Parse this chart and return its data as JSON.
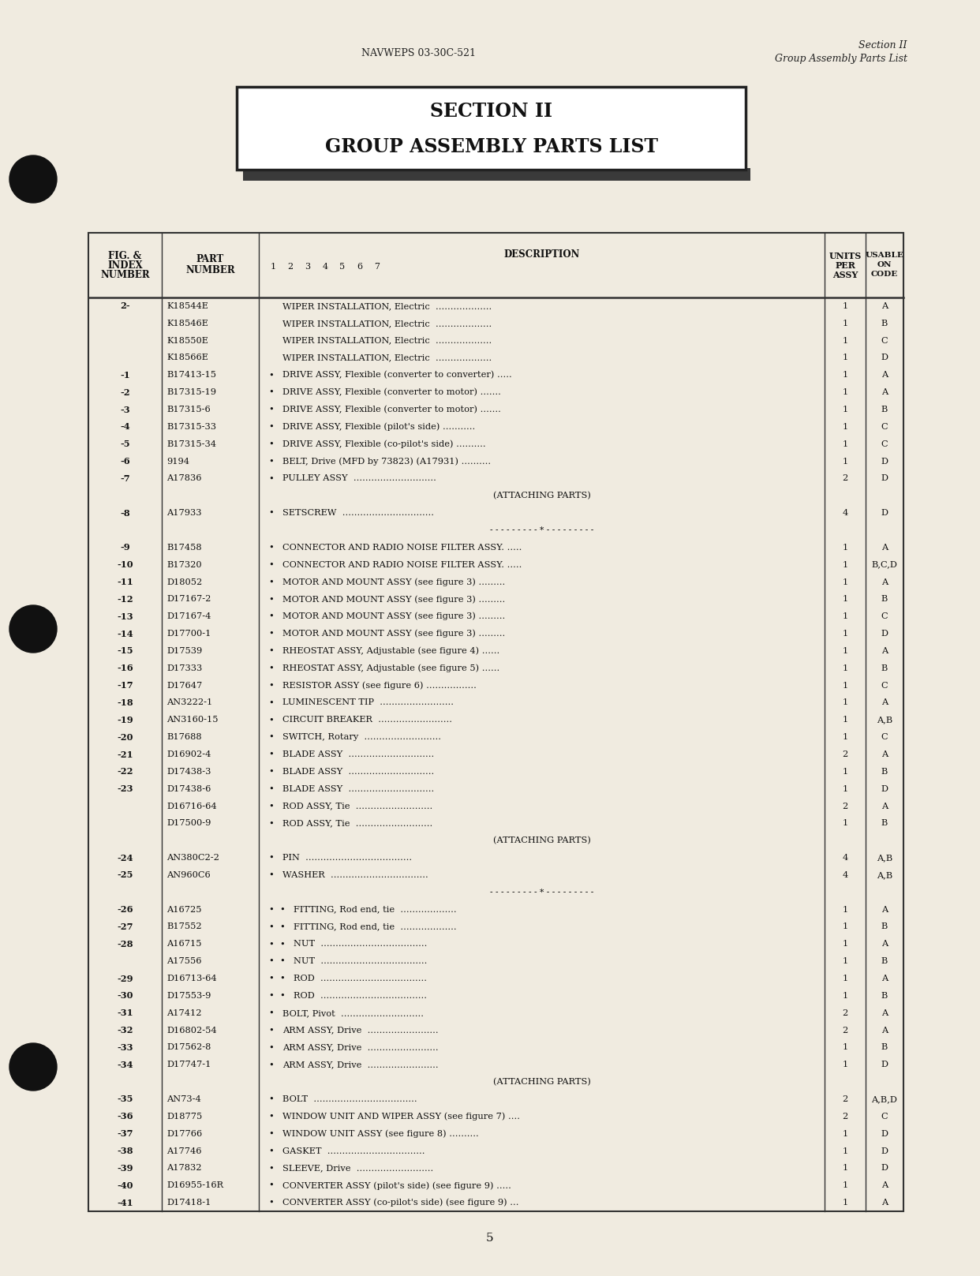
{
  "page_bg": "#f0ebe0",
  "header_left": "NAVWEPS 03-30C-521",
  "header_right_line1": "Section II",
  "header_right_line2": "Group Assembly Parts List",
  "title_box_line1": "SECTION II",
  "title_box_line2": "GROUP ASSEMBLY PARTS LIST",
  "page_number": "5",
  "rows": [
    [
      "2-",
      "K18544E",
      "WIPER INSTALLATION, Electric  ...................",
      "1",
      "A",
      false
    ],
    [
      "",
      "K18546E",
      "WIPER INSTALLATION, Electric  ...................",
      "1",
      "B",
      false
    ],
    [
      "",
      "K18550E",
      "WIPER INSTALLATION, Electric  ...................",
      "1",
      "C",
      false
    ],
    [
      "",
      "K18566E",
      "WIPER INSTALLATION, Electric  ...................",
      "1",
      "D",
      false
    ],
    [
      "-1",
      "B17413-15",
      "DRIVE ASSY, Flexible (converter to converter) .....",
      "1",
      "A",
      true
    ],
    [
      "-2",
      "B17315-19",
      "DRIVE ASSY, Flexible (converter to motor) .......",
      "1",
      "A",
      true
    ],
    [
      "-3",
      "B17315-6",
      "DRIVE ASSY, Flexible (converter to motor) .......",
      "1",
      "B",
      true
    ],
    [
      "-4",
      "B17315-33",
      "DRIVE ASSY, Flexible (pilot's side) ...........",
      "1",
      "C",
      true
    ],
    [
      "-5",
      "B17315-34",
      "DRIVE ASSY, Flexible (co-pilot's side) ..........",
      "1",
      "C",
      true
    ],
    [
      "-6",
      "9194",
      "BELT, Drive (MFD by 73823) (A17931) ..........",
      "1",
      "D",
      true
    ],
    [
      "-7",
      "A17836",
      "PULLEY ASSY  ............................",
      "2",
      "D",
      true
    ],
    [
      "__ATTACHING__",
      "",
      "",
      "",
      "",
      false
    ],
    [
      "-8",
      "A17933",
      "SETSCREW  ...............................",
      "4",
      "D",
      true
    ],
    [
      "__SEP__",
      "",
      "",
      "",
      "",
      false
    ],
    [
      "-9",
      "B17458",
      "CONNECTOR AND RADIO NOISE FILTER ASSY. .....",
      "1",
      "A",
      true
    ],
    [
      "-10",
      "B17320",
      "CONNECTOR AND RADIO NOISE FILTER ASSY. .....",
      "1",
      "B,C,D",
      true
    ],
    [
      "-11",
      "D18052",
      "MOTOR AND MOUNT ASSY (see figure 3) .........",
      "1",
      "A",
      true
    ],
    [
      "-12",
      "D17167-2",
      "MOTOR AND MOUNT ASSY (see figure 3) .........",
      "1",
      "B",
      true
    ],
    [
      "-13",
      "D17167-4",
      "MOTOR AND MOUNT ASSY (see figure 3) .........",
      "1",
      "C",
      true
    ],
    [
      "-14",
      "D17700-1",
      "MOTOR AND MOUNT ASSY (see figure 3) .........",
      "1",
      "D",
      true
    ],
    [
      "-15",
      "D17539",
      "RHEOSTAT ASSY, Adjustable (see figure 4) ......",
      "1",
      "A",
      true
    ],
    [
      "-16",
      "D17333",
      "RHEOSTAT ASSY, Adjustable (see figure 5) ......",
      "1",
      "B",
      true
    ],
    [
      "-17",
      "D17647",
      "RESISTOR ASSY (see figure 6) .................",
      "1",
      "C",
      true
    ],
    [
      "-18",
      "AN3222-1",
      "LUMINESCENT TIP  .........................",
      "1",
      "A",
      true
    ],
    [
      "-19",
      "AN3160-15",
      "CIRCUIT BREAKER  .........................",
      "1",
      "A,B",
      true
    ],
    [
      "-20",
      "B17688",
      "SWITCH, Rotary  ..........................",
      "1",
      "C",
      true
    ],
    [
      "-21",
      "D16902-4",
      "BLADE ASSY  .............................",
      "2",
      "A",
      true
    ],
    [
      "-22",
      "D17438-3",
      "BLADE ASSY  .............................",
      "1",
      "B",
      true
    ],
    [
      "-23",
      "D17438-6",
      "BLADE ASSY  .............................",
      "1",
      "D",
      true
    ],
    [
      "",
      "D16716-64",
      "ROD ASSY, Tie  ..........................",
      "2",
      "A",
      true
    ],
    [
      "",
      "D17500-9",
      "ROD ASSY, Tie  ..........................",
      "1",
      "B",
      true
    ],
    [
      "__ATTACHING__",
      "",
      "",
      "",
      "",
      false
    ],
    [
      "-24",
      "AN380C2-2",
      "PIN  ....................................",
      "4",
      "A,B",
      true
    ],
    [
      "-25",
      "AN960C6",
      "WASHER  .................................",
      "4",
      "A,B",
      true
    ],
    [
      "__SEP__",
      "",
      "",
      "",
      "",
      false
    ],
    [
      "-26",
      "A16725",
      "FITTING, Rod end, tie  ...................",
      "1",
      "A",
      "double"
    ],
    [
      "-27",
      "B17552",
      "FITTING, Rod end, tie  ...................",
      "1",
      "B",
      "double"
    ],
    [
      "-28",
      "A16715",
      "NUT  ....................................",
      "1",
      "A",
      "double"
    ],
    [
      "",
      "A17556",
      "NUT  ....................................",
      "1",
      "B",
      "double"
    ],
    [
      "-29",
      "D16713-64",
      "ROD  ....................................",
      "1",
      "A",
      "double"
    ],
    [
      "-30",
      "D17553-9",
      "ROD  ....................................",
      "1",
      "B",
      "double"
    ],
    [
      "-31",
      "A17412",
      "BOLT, Pivot  ............................",
      "2",
      "A",
      true
    ],
    [
      "-32",
      "D16802-54",
      "ARM ASSY, Drive  ........................",
      "2",
      "A",
      true
    ],
    [
      "-33",
      "D17562-8",
      "ARM ASSY, Drive  ........................",
      "1",
      "B",
      true
    ],
    [
      "-34",
      "D17747-1",
      "ARM ASSY, Drive  ........................",
      "1",
      "D",
      true
    ],
    [
      "__ATTACHING__",
      "",
      "",
      "",
      "",
      false
    ],
    [
      "-35",
      "AN73-4",
      "BOLT  ...................................",
      "2",
      "A,B,D",
      true
    ],
    [
      "-36",
      "D18775",
      "WINDOW UNIT AND WIPER ASSY (see figure 7) ....",
      "2",
      "C",
      true
    ],
    [
      "-37",
      "D17766",
      "WINDOW UNIT ASSY (see figure 8) ..........",
      "1",
      "D",
      true
    ],
    [
      "-38",
      "A17746",
      "GASKET  .................................",
      "1",
      "D",
      true
    ],
    [
      "-39",
      "A17832",
      "SLEEVE, Drive  ..........................",
      "1",
      "D",
      true
    ],
    [
      "-40",
      "D16955-16R",
      "CONVERTER ASSY (pilot's side) (see figure 9) .....",
      "1",
      "A",
      true
    ],
    [
      "-41",
      "D17418-1",
      "CONVERTER ASSY (co-pilot's side) (see figure 9) ...",
      "1",
      "A",
      true
    ]
  ]
}
